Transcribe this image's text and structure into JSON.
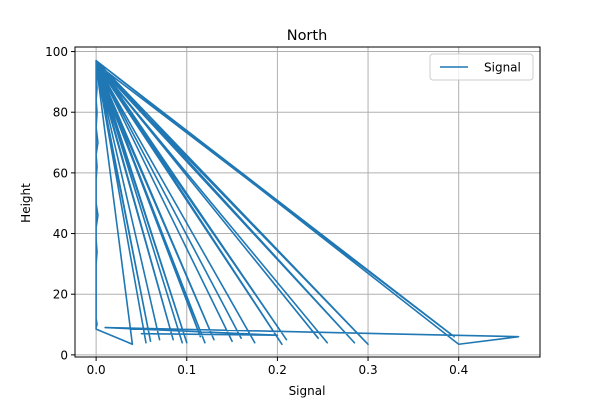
{
  "chart_data": {
    "type": "line",
    "title": "North",
    "xlabel": "Signal",
    "ylabel": "Height",
    "xlim": [
      -0.0233,
      0.4897
    ],
    "ylim": [
      -0.7,
      101.5
    ],
    "xticks": [
      0.0,
      0.1,
      0.2,
      0.3,
      0.4
    ],
    "xtick_labels": [
      "0.0",
      "0.1",
      "0.2",
      "0.3",
      "0.4"
    ],
    "yticks": [
      0,
      20,
      40,
      60,
      80,
      100
    ],
    "ytick_labels": [
      "0",
      "20",
      "40",
      "60",
      "80",
      "100"
    ],
    "grid": true,
    "legend": {
      "position": "top-right",
      "entries": [
        "Signal"
      ]
    },
    "colors": {
      "series": "#1f77b4",
      "grid": "#b0b0b0",
      "axes": "#000000"
    },
    "series": [
      {
        "name": "Signal",
        "x": [
          0.0,
          0.0,
          0.001,
          0.0,
          0.001,
          0.0,
          0.002,
          0.0,
          0.001,
          0.0,
          0.0,
          0.0,
          0.002,
          0.0,
          0.0,
          0.001,
          0.0,
          0.0,
          0.0,
          0.0,
          0.0,
          0.0,
          0.0,
          0.001,
          0.0,
          0.0,
          0.0,
          0.0,
          0.0,
          0.04,
          0.0,
          0.055,
          0.0,
          0.07,
          0.0,
          0.06,
          0.0,
          0.085,
          0.0,
          0.1,
          0.0,
          0.115,
          0.0,
          0.095,
          0.0,
          0.13,
          0.0,
          0.12,
          0.0,
          0.15,
          0.0,
          0.16,
          0.0,
          0.175,
          0.0,
          0.205,
          0.0,
          0.21,
          0.0,
          0.255,
          0.0,
          0.245,
          0.0,
          0.285,
          0.0,
          0.3,
          0.0,
          0.395,
          0.0,
          0.4,
          0.466,
          0.01,
          0.2,
          0.05
        ],
        "y": [
          97,
          93,
          88,
          84,
          80,
          75,
          70,
          66,
          62,
          58,
          54,
          50,
          46,
          42,
          38,
          34,
          30,
          26,
          22,
          18,
          15,
          16,
          12,
          10,
          9,
          8.5,
          9,
          97,
          8.5,
          3.5,
          96,
          4,
          96,
          5,
          96,
          4.5,
          95,
          5,
          96,
          4,
          97,
          6,
          96,
          4,
          96,
          5,
          95,
          4,
          96,
          4.5,
          96,
          5.5,
          96,
          4,
          96,
          3.5,
          97,
          5,
          96,
          4,
          96,
          5.5,
          96,
          4,
          97,
          3.5,
          96,
          6,
          97,
          3.5,
          6,
          9,
          6.5,
          7
        ]
      }
    ]
  }
}
